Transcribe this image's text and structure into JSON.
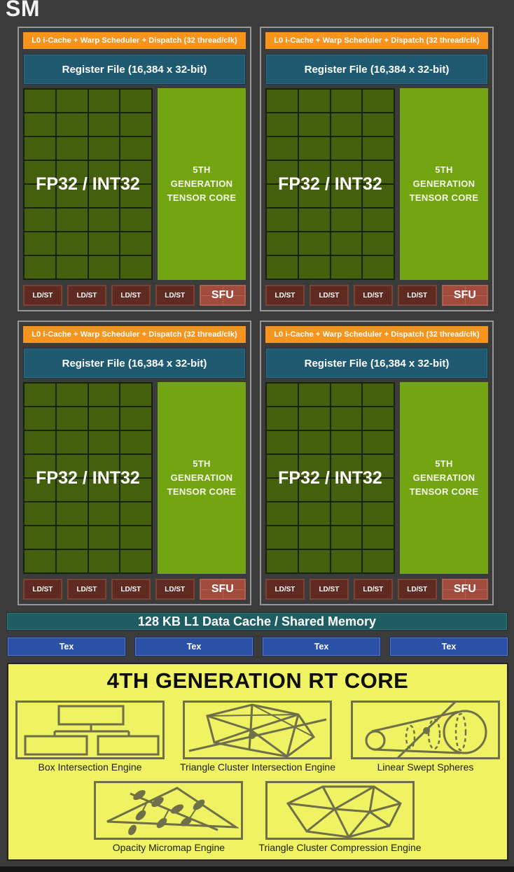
{
  "title": "SM",
  "colors": {
    "background": "#3b3b3b",
    "scheduler_orange": "#f7941e",
    "register_teal": "#1f5a70",
    "core_green": "#44600f",
    "tensor_green": "#73a512",
    "ldst_maroon": "#5e2a21",
    "sfu_red": "#a04b3c",
    "l1_teal": "#1e5e63",
    "tex_blue": "#2b51a7",
    "rt_yellow": "#eef263",
    "icon_olive": "#6f6f4a"
  },
  "partition_count": 4,
  "partition": {
    "scheduler_label": "L0 i-Cache + Warp Scheduler + Dispatch (32 thread/clk)",
    "register_label": "Register File (16,384 x 32-bit)",
    "core_label": "FP32 / INT32",
    "grid": {
      "rows": 8,
      "cols": 4
    },
    "tensor_lines": [
      "5TH",
      "GENERATION",
      "TENSOR CORE"
    ],
    "ldst_count": 4,
    "ldst_label": "LD/ST",
    "sfu_label": "SFU"
  },
  "l1_label": "128 KB L1 Data Cache / Shared Memory",
  "tex_count": 4,
  "tex_label": "Tex",
  "rt_core": {
    "title": "4TH GENERATION RT CORE",
    "engines_row1": [
      {
        "label": "Box Intersection Engine",
        "icon": "box-hierarchy-icon"
      },
      {
        "label": "Triangle Cluster Intersection Engine",
        "icon": "triangle-cluster-ray-icon"
      },
      {
        "label": "Linear Swept Spheres",
        "icon": "swept-spheres-icon"
      }
    ],
    "engines_row2": [
      {
        "label": "Opacity Micromap Engine",
        "icon": "leaf-triangle-icon"
      },
      {
        "label": "Triangle Cluster Compression Engine",
        "icon": "compressed-cluster-icon"
      }
    ]
  }
}
